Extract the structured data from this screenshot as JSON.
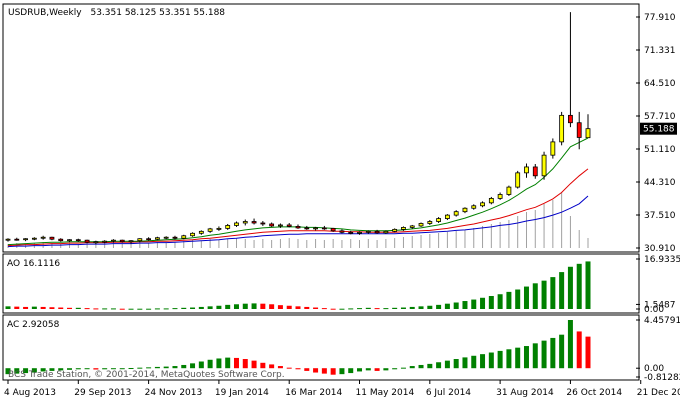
{
  "main": {
    "symbol": "USDRUB,Weekly",
    "ohlc": "53.351 58.125 53.351 55.188",
    "price_label": "55.188",
    "y_ticks": [
      "77.910",
      "71.331",
      "64.510",
      "57.710",
      "51.110",
      "44.310",
      "37.510",
      "30.910"
    ],
    "ylim": [
      30.91,
      77.91
    ],
    "candles": [
      [
        32.5,
        32.9,
        32.2,
        32.7
      ],
      [
        32.7,
        33.0,
        32.4,
        32.6
      ],
      [
        32.6,
        32.9,
        32.3,
        32.8
      ],
      [
        32.8,
        33.1,
        32.5,
        32.9
      ],
      [
        32.9,
        33.4,
        32.6,
        33.1
      ],
      [
        33.1,
        33.2,
        32.5,
        32.7
      ],
      [
        32.7,
        32.9,
        32.2,
        32.4
      ],
      [
        32.4,
        32.7,
        32.1,
        32.6
      ],
      [
        32.6,
        32.8,
        32.2,
        32.5
      ],
      [
        32.5,
        32.6,
        31.9,
        32.1
      ],
      [
        32.1,
        32.4,
        31.7,
        32.2
      ],
      [
        32.2,
        32.5,
        31.9,
        32.3
      ],
      [
        32.3,
        32.7,
        32.0,
        32.5
      ],
      [
        32.5,
        32.6,
        32.0,
        32.2
      ],
      [
        32.2,
        32.5,
        31.8,
        32.4
      ],
      [
        32.4,
        32.9,
        32.1,
        32.8
      ],
      [
        32.8,
        33.1,
        32.4,
        32.7
      ],
      [
        32.7,
        33.2,
        32.5,
        33.0
      ],
      [
        33.0,
        33.3,
        32.7,
        33.1
      ],
      [
        33.1,
        33.4,
        32.6,
        32.9
      ],
      [
        32.9,
        33.6,
        32.7,
        33.4
      ],
      [
        33.4,
        34.1,
        33.2,
        33.9
      ],
      [
        33.9,
        34.5,
        33.6,
        34.3
      ],
      [
        34.3,
        35.0,
        34.0,
        34.8
      ],
      [
        34.8,
        35.3,
        34.4,
        34.9
      ],
      [
        34.9,
        35.8,
        34.6,
        35.5
      ],
      [
        35.5,
        36.3,
        35.2,
        36.0
      ],
      [
        36.0,
        36.7,
        35.5,
        36.3
      ],
      [
        36.3,
        36.9,
        35.7,
        36.0
      ],
      [
        36.0,
        36.4,
        35.4,
        35.8
      ],
      [
        35.8,
        36.1,
        35.2,
        35.4
      ],
      [
        35.4,
        35.9,
        35.0,
        35.6
      ],
      [
        35.6,
        36.0,
        35.1,
        35.3
      ],
      [
        35.3,
        35.7,
        34.8,
        35.0
      ],
      [
        35.0,
        35.4,
        34.6,
        34.8
      ],
      [
        34.8,
        35.2,
        34.5,
        35.0
      ],
      [
        35.0,
        35.4,
        34.6,
        34.9
      ],
      [
        34.9,
        35.0,
        34.2,
        34.4
      ],
      [
        34.4,
        34.7,
        33.9,
        34.1
      ],
      [
        34.1,
        34.4,
        33.7,
        33.9
      ],
      [
        33.9,
        34.3,
        33.6,
        34.1
      ],
      [
        34.1,
        34.5,
        33.8,
        34.3
      ],
      [
        34.3,
        34.6,
        33.8,
        34.0
      ],
      [
        34.0,
        34.5,
        33.8,
        34.3
      ],
      [
        34.3,
        34.9,
        34.1,
        34.7
      ],
      [
        34.7,
        35.3,
        34.4,
        35.1
      ],
      [
        35.1,
        35.6,
        34.8,
        35.4
      ],
      [
        35.4,
        36.1,
        35.2,
        35.9
      ],
      [
        35.9,
        36.6,
        35.6,
        36.3
      ],
      [
        36.3,
        37.2,
        36.0,
        36.9
      ],
      [
        36.9,
        37.8,
        36.6,
        37.6
      ],
      [
        37.6,
        38.6,
        37.3,
        38.3
      ],
      [
        38.3,
        39.2,
        38.0,
        39.0
      ],
      [
        39.0,
        39.8,
        38.7,
        39.5
      ],
      [
        39.5,
        40.4,
        39.2,
        40.1
      ],
      [
        40.1,
        41.3,
        39.8,
        41.0
      ],
      [
        41.0,
        42.2,
        40.7,
        41.8
      ],
      [
        41.8,
        43.6,
        41.5,
        43.3
      ],
      [
        43.3,
        46.6,
        43.0,
        46.2
      ],
      [
        46.2,
        48.1,
        45.2,
        47.4
      ],
      [
        47.4,
        48.0,
        45.0,
        45.6
      ],
      [
        45.6,
        50.5,
        44.8,
        49.8
      ],
      [
        49.8,
        53.2,
        49.1,
        52.5
      ],
      [
        52.5,
        58.6,
        51.8,
        57.9
      ],
      [
        57.9,
        78.9,
        55.5,
        56.4
      ],
      [
        56.4,
        58.6,
        51.0,
        53.4
      ],
      [
        53.351,
        58.125,
        53.351,
        55.188
      ]
    ],
    "volumes": [
      4,
      5,
      4,
      5,
      6,
      5,
      4,
      5,
      4,
      5,
      6,
      5,
      5,
      4,
      5,
      6,
      5,
      6,
      5,
      6,
      7,
      8,
      7,
      9,
      8,
      9,
      10,
      9,
      8,
      9,
      8,
      9,
      10,
      9,
      8,
      9,
      8,
      9,
      8,
      9,
      8,
      9,
      8,
      9,
      10,
      11,
      12,
      13,
      14,
      15,
      16,
      17,
      18,
      20,
      22,
      24,
      26,
      28,
      32,
      36,
      38,
      44,
      48,
      56,
      32,
      18,
      10
    ],
    "ema_green": [
      31.6,
      31.7,
      31.8,
      31.9,
      32.0,
      32.1,
      32.1,
      32.2,
      32.2,
      32.2,
      32.2,
      32.2,
      32.3,
      32.3,
      32.3,
      32.3,
      32.4,
      32.5,
      32.6,
      32.7,
      32.8,
      33.0,
      33.2,
      33.5,
      33.7,
      34.0,
      34.3,
      34.6,
      34.8,
      35.0,
      35.1,
      35.2,
      35.2,
      35.2,
      35.1,
      35.1,
      35.0,
      34.9,
      34.8,
      34.6,
      34.5,
      34.4,
      34.4,
      34.4,
      34.5,
      34.6,
      34.8,
      35.0,
      35.3,
      35.6,
      36.0,
      36.5,
      37.0,
      37.6,
      38.2,
      38.9,
      39.7,
      40.6,
      41.7,
      42.9,
      43.8,
      45.3,
      47.0,
      49.2,
      51.5,
      52.4,
      53.3
    ],
    "ema_red": [
      31.4,
      31.5,
      31.6,
      31.6,
      31.7,
      31.8,
      31.8,
      31.9,
      31.9,
      32.0,
      32.0,
      32.0,
      32.1,
      32.1,
      32.1,
      32.2,
      32.2,
      32.3,
      32.3,
      32.4,
      32.5,
      32.6,
      32.8,
      32.9,
      33.1,
      33.3,
      33.5,
      33.7,
      33.9,
      34.1,
      34.2,
      34.3,
      34.4,
      34.4,
      34.4,
      34.4,
      34.4,
      34.3,
      34.3,
      34.2,
      34.2,
      34.1,
      34.1,
      34.1,
      34.1,
      34.2,
      34.3,
      34.4,
      34.5,
      34.7,
      34.9,
      35.2,
      35.5,
      35.8,
      36.2,
      36.6,
      37.0,
      37.5,
      38.1,
      38.7,
      39.2,
      40.0,
      40.9,
      42.2,
      44.0,
      45.6,
      47.0
    ],
    "ema_blue": [
      31.2,
      31.3,
      31.3,
      31.4,
      31.4,
      31.5,
      31.5,
      31.6,
      31.6,
      31.7,
      31.7,
      31.7,
      31.8,
      31.8,
      31.8,
      31.9,
      31.9,
      32.0,
      32.0,
      32.1,
      32.2,
      32.3,
      32.4,
      32.5,
      32.6,
      32.8,
      32.9,
      33.1,
      33.2,
      33.4,
      33.5,
      33.6,
      33.7,
      33.7,
      33.8,
      33.8,
      33.8,
      33.8,
      33.8,
      33.8,
      33.8,
      33.8,
      33.8,
      33.8,
      33.8,
      33.9,
      33.9,
      34.0,
      34.1,
      34.2,
      34.3,
      34.5,
      34.6,
      34.8,
      35.0,
      35.2,
      35.5,
      35.7,
      36.0,
      36.4,
      36.7,
      37.1,
      37.6,
      38.2,
      39.0,
      39.9,
      41.5
    ]
  },
  "ao": {
    "label": "AO 16.1116",
    "y_ticks": [
      "16.9335",
      "1.5487",
      "0.00"
    ],
    "ylim": [
      0,
      16.9335
    ],
    "values": [
      0.9,
      0.8,
      0.7,
      0.8,
      0.7,
      0.6,
      0.5,
      0.4,
      0.4,
      0.3,
      0.2,
      0.2,
      0.2,
      0.1,
      0.1,
      0.1,
      0.1,
      0.2,
      0.2,
      0.3,
      0.4,
      0.5,
      0.7,
      0.9,
      1.1,
      1.4,
      1.6,
      1.8,
      1.9,
      1.8,
      1.6,
      1.3,
      1.1,
      0.9,
      0.7,
      0.5,
      0.3,
      0.1,
      0.1,
      0.2,
      0.3,
      0.4,
      0.3,
      0.3,
      0.4,
      0.5,
      0.7,
      0.9,
      1.1,
      1.4,
      1.8,
      2.2,
      2.7,
      3.2,
      3.8,
      4.4,
      5.0,
      5.8,
      6.6,
      7.6,
      8.7,
      9.6,
      10.8,
      12.5,
      14.3,
      15.3,
      16.1116
    ]
  },
  "ac": {
    "label": "AC 2.92058",
    "y_ticks": [
      "4.45791",
      "0.00",
      "-0.81282"
    ],
    "ylim": [
      -0.81282,
      4.45791
    ],
    "values": [
      -0.55,
      -0.5,
      -0.45,
      -0.4,
      -0.3,
      -0.25,
      -0.2,
      -0.15,
      -0.1,
      -0.08,
      -0.12,
      -0.1,
      -0.05,
      -0.02,
      0.02,
      0.05,
      0.08,
      0.12,
      0.15,
      0.2,
      0.3,
      0.45,
      0.62,
      0.78,
      0.9,
      0.98,
      0.95,
      0.85,
      0.7,
      0.5,
      0.35,
      0.2,
      0.05,
      -0.1,
      -0.25,
      -0.4,
      -0.5,
      -0.6,
      -0.55,
      -0.45,
      -0.3,
      -0.2,
      -0.25,
      -0.2,
      -0.1,
      0.05,
      0.2,
      0.3,
      0.4,
      0.55,
      0.7,
      0.85,
      1.0,
      1.15,
      1.3,
      1.45,
      1.6,
      1.75,
      1.9,
      2.05,
      2.3,
      2.55,
      2.8,
      3.1,
      4.45791,
      3.4,
      2.92058
    ]
  },
  "watermark": "BCS Trade Station, © 2001-2014, MetaQuotes Software Corp.",
  "x_ticks": [
    "4 Aug 2013",
    "29 Sep 2013",
    "24 Nov 2013",
    "19 Jan 2014",
    "16 Mar 2014",
    "11 May 2014",
    "6 Jul 2014",
    "31 Aug 2014",
    "26 Oct 2014",
    "21 Dec 2014"
  ],
  "colors": {
    "bull_candle": "#ffff00",
    "bear_candle": "#ff0000",
    "ema_green": "#008000",
    "ema_red": "#e00000",
    "ema_blue": "#0000c8",
    "hist_up": "#008000",
    "hist_down": "#ff0000",
    "volume": "#a0a0a0"
  }
}
